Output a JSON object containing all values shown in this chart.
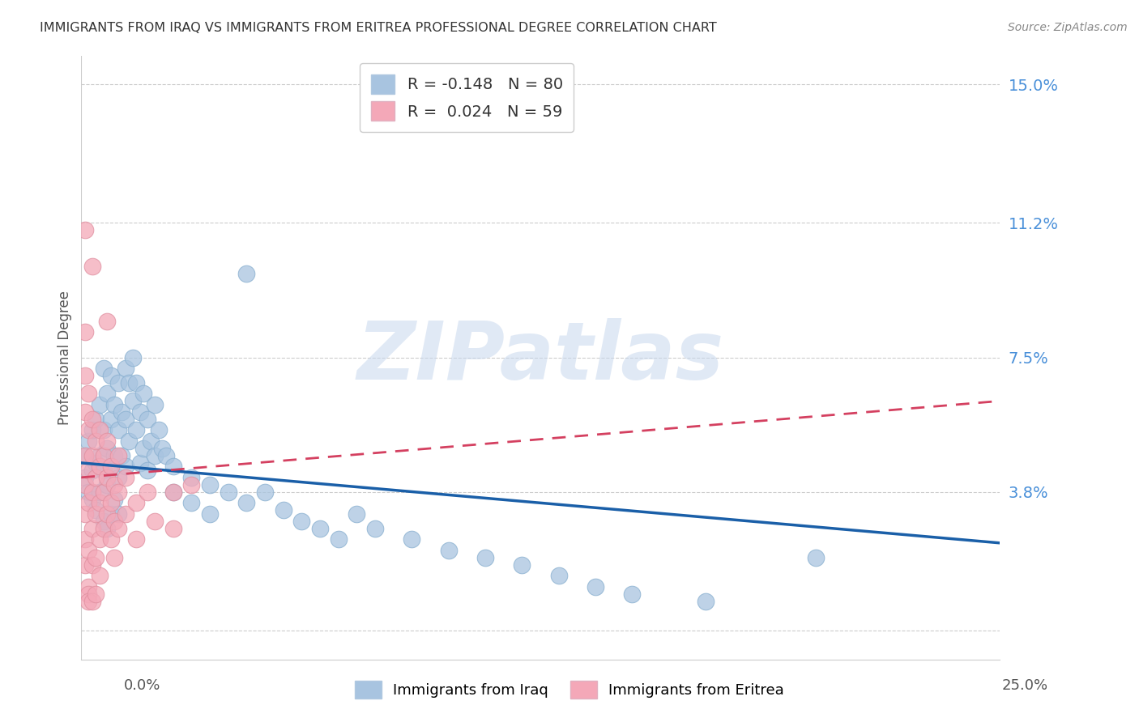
{
  "title": "IMMIGRANTS FROM IRAQ VS IMMIGRANTS FROM ERITREA PROFESSIONAL DEGREE CORRELATION CHART",
  "source": "Source: ZipAtlas.com",
  "ylabel": "Professional Degree",
  "y_ticks_right": [
    0.0,
    0.038,
    0.075,
    0.112,
    0.15
  ],
  "y_tick_labels_right": [
    "",
    "3.8%",
    "7.5%",
    "11.2%",
    "15.0%"
  ],
  "xlim": [
    0.0,
    0.25
  ],
  "ylim": [
    -0.008,
    0.158
  ],
  "iraq_color": "#a8c4e0",
  "eritrea_color": "#f4a8b8",
  "iraq_line_color": "#1a5fa8",
  "eritrea_line_color": "#d44060",
  "iraq_R": -0.148,
  "iraq_N": 80,
  "eritrea_R": 0.024,
  "eritrea_N": 59,
  "watermark": "ZIPatlas",
  "background_color": "#ffffff",
  "grid_color": "#cccccc",
  "iraq_line_x0": 0.0,
  "iraq_line_y0": 0.046,
  "iraq_line_x1": 0.25,
  "iraq_line_y1": 0.024,
  "eritrea_line_x0": 0.0,
  "eritrea_line_y0": 0.042,
  "eritrea_line_x1": 0.25,
  "eritrea_line_y1": 0.063,
  "iraq_scatter": [
    [
      0.001,
      0.048
    ],
    [
      0.001,
      0.042
    ],
    [
      0.002,
      0.052
    ],
    [
      0.002,
      0.038
    ],
    [
      0.003,
      0.055
    ],
    [
      0.003,
      0.044
    ],
    [
      0.003,
      0.036
    ],
    [
      0.004,
      0.058
    ],
    [
      0.004,
      0.046
    ],
    [
      0.004,
      0.033
    ],
    [
      0.005,
      0.062
    ],
    [
      0.005,
      0.048
    ],
    [
      0.005,
      0.038
    ],
    [
      0.006,
      0.072
    ],
    [
      0.006,
      0.055
    ],
    [
      0.006,
      0.044
    ],
    [
      0.006,
      0.03
    ],
    [
      0.007,
      0.065
    ],
    [
      0.007,
      0.05
    ],
    [
      0.007,
      0.04
    ],
    [
      0.007,
      0.028
    ],
    [
      0.008,
      0.07
    ],
    [
      0.008,
      0.058
    ],
    [
      0.008,
      0.045
    ],
    [
      0.008,
      0.032
    ],
    [
      0.009,
      0.062
    ],
    [
      0.009,
      0.048
    ],
    [
      0.009,
      0.036
    ],
    [
      0.01,
      0.068
    ],
    [
      0.01,
      0.055
    ],
    [
      0.01,
      0.042
    ],
    [
      0.01,
      0.032
    ],
    [
      0.011,
      0.06
    ],
    [
      0.011,
      0.048
    ],
    [
      0.012,
      0.072
    ],
    [
      0.012,
      0.058
    ],
    [
      0.012,
      0.045
    ],
    [
      0.013,
      0.068
    ],
    [
      0.013,
      0.052
    ],
    [
      0.014,
      0.063
    ],
    [
      0.014,
      0.075
    ],
    [
      0.015,
      0.068
    ],
    [
      0.015,
      0.055
    ],
    [
      0.016,
      0.06
    ],
    [
      0.016,
      0.046
    ],
    [
      0.017,
      0.065
    ],
    [
      0.017,
      0.05
    ],
    [
      0.018,
      0.058
    ],
    [
      0.018,
      0.044
    ],
    [
      0.019,
      0.052
    ],
    [
      0.02,
      0.062
    ],
    [
      0.02,
      0.048
    ],
    [
      0.021,
      0.055
    ],
    [
      0.022,
      0.05
    ],
    [
      0.023,
      0.048
    ],
    [
      0.025,
      0.045
    ],
    [
      0.025,
      0.038
    ],
    [
      0.03,
      0.042
    ],
    [
      0.03,
      0.035
    ],
    [
      0.035,
      0.04
    ],
    [
      0.035,
      0.032
    ],
    [
      0.04,
      0.038
    ],
    [
      0.045,
      0.035
    ],
    [
      0.05,
      0.038
    ],
    [
      0.055,
      0.033
    ],
    [
      0.06,
      0.03
    ],
    [
      0.065,
      0.028
    ],
    [
      0.07,
      0.025
    ],
    [
      0.075,
      0.032
    ],
    [
      0.08,
      0.028
    ],
    [
      0.09,
      0.025
    ],
    [
      0.1,
      0.022
    ],
    [
      0.11,
      0.02
    ],
    [
      0.12,
      0.018
    ],
    [
      0.13,
      0.015
    ],
    [
      0.14,
      0.012
    ],
    [
      0.15,
      0.01
    ],
    [
      0.17,
      0.008
    ],
    [
      0.2,
      0.02
    ],
    [
      0.045,
      0.098
    ]
  ],
  "eritrea_scatter": [
    [
      0.001,
      0.048
    ],
    [
      0.001,
      0.04
    ],
    [
      0.001,
      0.032
    ],
    [
      0.001,
      0.025
    ],
    [
      0.001,
      0.018
    ],
    [
      0.001,
      0.06
    ],
    [
      0.001,
      0.07
    ],
    [
      0.001,
      0.082
    ],
    [
      0.002,
      0.055
    ],
    [
      0.002,
      0.044
    ],
    [
      0.002,
      0.035
    ],
    [
      0.002,
      0.022
    ],
    [
      0.002,
      0.065
    ],
    [
      0.002,
      0.012
    ],
    [
      0.002,
      0.01
    ],
    [
      0.002,
      0.008
    ],
    [
      0.003,
      0.058
    ],
    [
      0.003,
      0.048
    ],
    [
      0.003,
      0.038
    ],
    [
      0.003,
      0.028
    ],
    [
      0.003,
      0.018
    ],
    [
      0.003,
      0.008
    ],
    [
      0.003,
      0.1
    ],
    [
      0.004,
      0.052
    ],
    [
      0.004,
      0.042
    ],
    [
      0.004,
      0.032
    ],
    [
      0.004,
      0.02
    ],
    [
      0.004,
      0.01
    ],
    [
      0.005,
      0.055
    ],
    [
      0.005,
      0.045
    ],
    [
      0.005,
      0.035
    ],
    [
      0.005,
      0.025
    ],
    [
      0.005,
      0.015
    ],
    [
      0.006,
      0.048
    ],
    [
      0.006,
      0.038
    ],
    [
      0.006,
      0.028
    ],
    [
      0.007,
      0.052
    ],
    [
      0.007,
      0.042
    ],
    [
      0.007,
      0.032
    ],
    [
      0.007,
      0.085
    ],
    [
      0.008,
      0.045
    ],
    [
      0.008,
      0.035
    ],
    [
      0.008,
      0.025
    ],
    [
      0.009,
      0.04
    ],
    [
      0.009,
      0.03
    ],
    [
      0.009,
      0.02
    ],
    [
      0.01,
      0.048
    ],
    [
      0.01,
      0.038
    ],
    [
      0.01,
      0.028
    ],
    [
      0.012,
      0.042
    ],
    [
      0.012,
      0.032
    ],
    [
      0.015,
      0.035
    ],
    [
      0.015,
      0.025
    ],
    [
      0.018,
      0.038
    ],
    [
      0.02,
      0.03
    ],
    [
      0.025,
      0.038
    ],
    [
      0.025,
      0.028
    ],
    [
      0.03,
      0.04
    ],
    [
      0.001,
      0.11
    ]
  ]
}
